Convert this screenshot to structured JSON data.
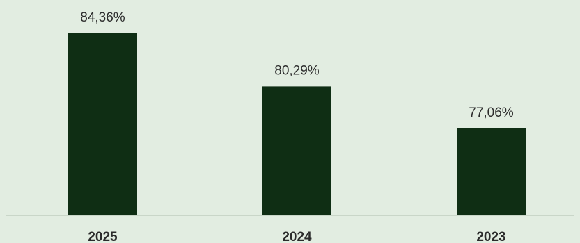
{
  "colors": {
    "background": "#e2ede1",
    "bar": "#0f2e14",
    "axis": "#c9d6c8",
    "text": "#2b2b2b"
  },
  "chart_data": {
    "type": "bar",
    "categories": [
      "2025",
      "2024",
      "2023"
    ],
    "values": [
      84.36,
      80.29,
      77.06
    ],
    "data_labels": [
      "84,36%",
      "80,29%",
      "77,06%"
    ],
    "ylim": [
      70.4,
      84.36
    ],
    "grid": false,
    "legend": "none",
    "title": "",
    "xlabel": "",
    "ylabel": ""
  }
}
